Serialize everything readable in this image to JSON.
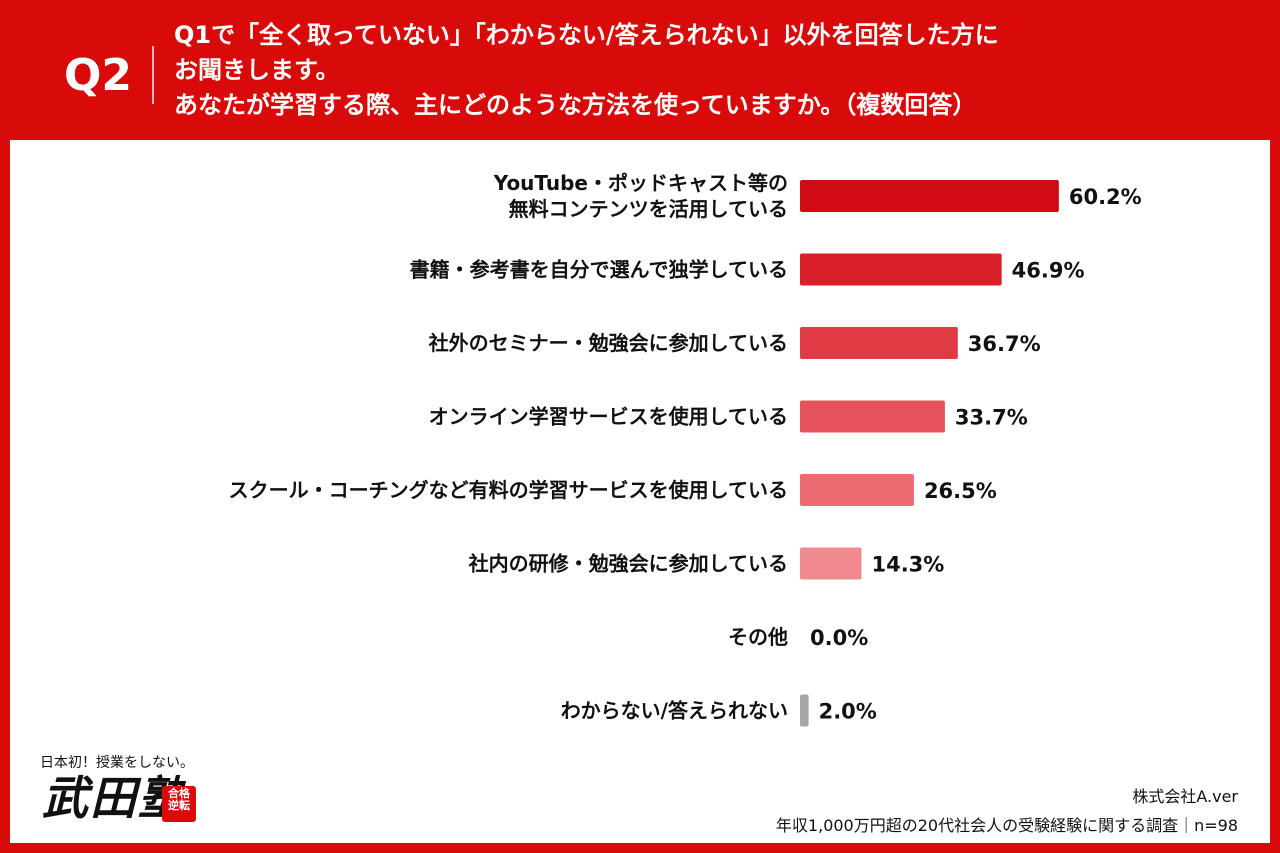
{
  "header": {
    "q_label": "Q2",
    "question_lines": [
      "Q1で「全く取っていない」「わからない/答えられない」以外を回答した方に",
      "お聞きします。",
      "あなたが学習する際、主にどのような方法を使っていますか。（複数回答）"
    ]
  },
  "chart_data": {
    "type": "bar",
    "orientation": "horizontal",
    "categories": [
      [
        "YouTube・ポッドキャスト等の",
        "無料コンテンツを活用している"
      ],
      [
        "書籍・参考書を自分で選んで独学している"
      ],
      [
        "社外のセミナー・勉強会に参加している"
      ],
      [
        "オンライン学習サービスを使用している"
      ],
      [
        "スクール・コーチングなど有料の学習サービスを使用している"
      ],
      [
        "社内の研修・勉強会に参加している"
      ],
      [
        "その他"
      ],
      [
        "わからない/答えられない"
      ]
    ],
    "values": [
      60.2,
      46.9,
      36.7,
      33.7,
      26.5,
      14.3,
      0.0,
      2.0
    ],
    "value_labels": [
      "60.2%",
      "46.9%",
      "36.7%",
      "33.7%",
      "26.5%",
      "14.3%",
      "0.0%",
      "2.0%"
    ],
    "colors": [
      "#d10a14",
      "#d91f2a",
      "#e03a44",
      "#e5525b",
      "#ec6b72",
      "#f08a8f",
      "#f08a8f",
      "#a6a6a6"
    ],
    "unit": "%"
  },
  "brand": {
    "tagline": "日本初！授業をしない。",
    "logo": "武田塾",
    "seal": "合格 逆転"
  },
  "footer": {
    "company": "株式会社A.ver",
    "survey": "年収1,000万円超の20代社会人の受験経験に関する調査｜n=98"
  }
}
